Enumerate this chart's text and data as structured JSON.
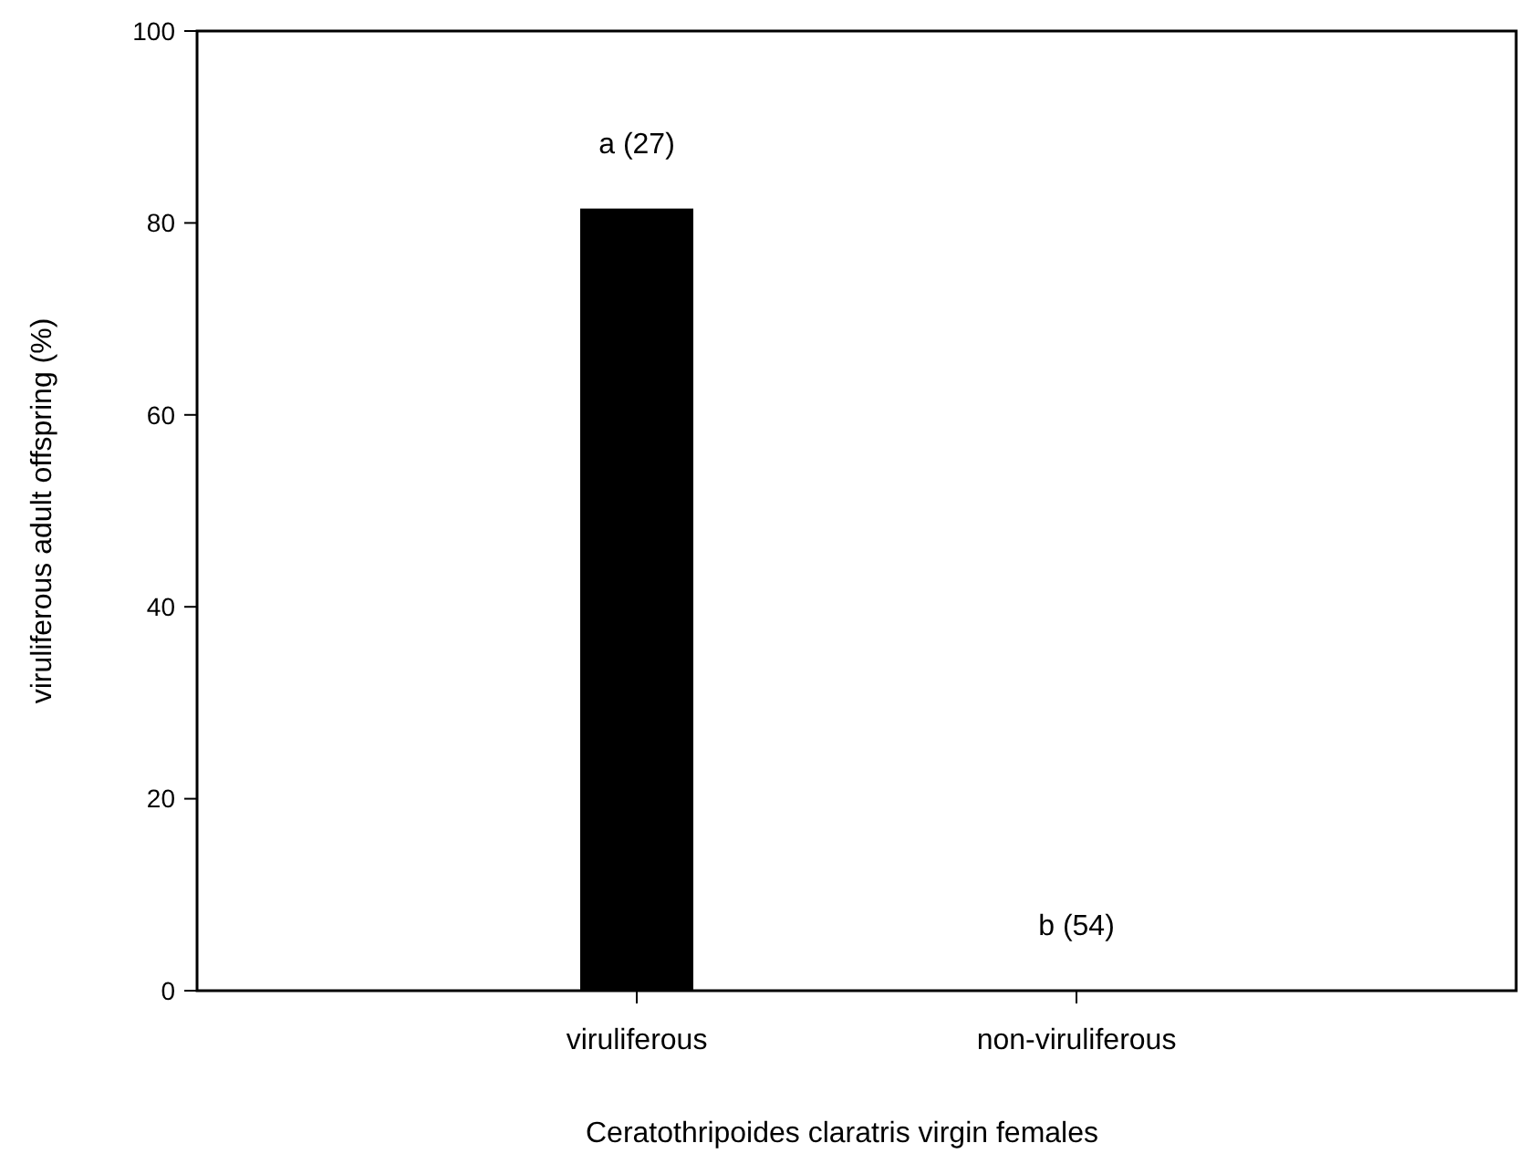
{
  "chart_data": {
    "type": "bar",
    "categories": [
      "viruliferous",
      "non-viruliferous"
    ],
    "values": [
      81.5,
      0
    ],
    "color": "#000000",
    "xlabel": "Ceratothripoides claratris virgin females",
    "ylabel": "viruliferous adult offspring (%)",
    "ylim": [
      0,
      100
    ],
    "yticks": [
      0,
      20,
      40,
      60,
      80,
      100
    ],
    "annotations": [
      "a (27)",
      "b (54)"
    ],
    "grid": false
  }
}
